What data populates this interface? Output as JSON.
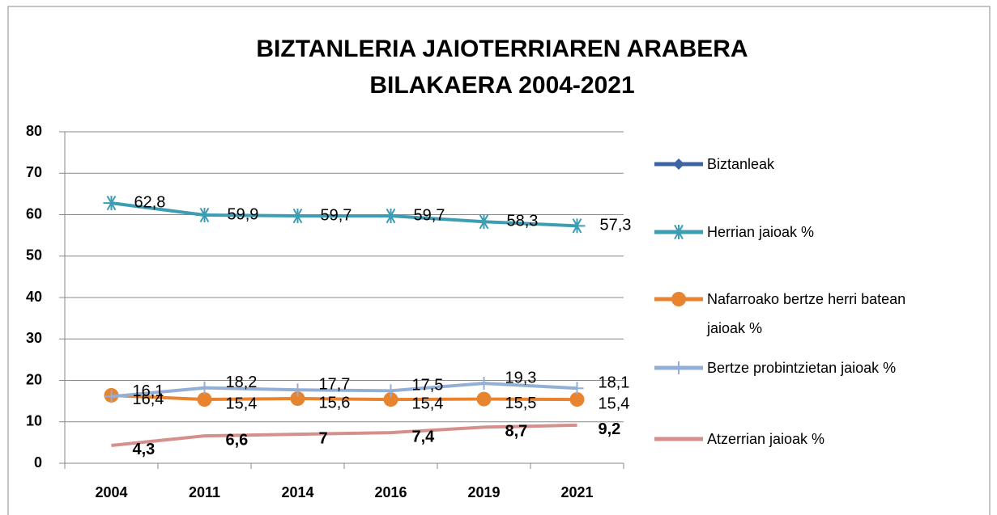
{
  "chart_data": {
    "type": "line",
    "title": [
      "BIZTANLERIA JAIOTERRIAREN ARABERA",
      "BILAKAERA 2004-2021"
    ],
    "categories": [
      "2004",
      "2011",
      "2014",
      "2016",
      "2019",
      "2021"
    ],
    "ylim": [
      0,
      80
    ],
    "yticks": [
      0,
      10,
      20,
      30,
      40,
      50,
      60,
      70,
      80
    ],
    "grid": true,
    "legend": "right",
    "series": [
      {
        "name": "Biztanleak",
        "color": "#3c64a5",
        "marker": "diamond",
        "values": [
          null,
          null,
          null,
          null,
          null,
          null
        ]
      },
      {
        "name": "Herrian jaioak %",
        "color": "#3d9db3",
        "marker": "asterisk",
        "values": [
          62.8,
          59.9,
          59.7,
          59.7,
          58.3,
          57.3
        ],
        "value_labels": [
          "62,8",
          "59,9",
          "59,7",
          "59,7",
          "58,3",
          "57,3"
        ]
      },
      {
        "name": "Nafarroako bertze herri batean jaioak %",
        "color": "#e8832f",
        "marker": "circle",
        "values": [
          16.4,
          15.4,
          15.6,
          15.4,
          15.5,
          15.4
        ],
        "value_labels": [
          "16,4",
          "15,4",
          "15,6",
          "15,4",
          "15,5",
          "15,4"
        ]
      },
      {
        "name": "Bertze probintzietan jaioak %",
        "color": "#93afd6",
        "marker": "plus",
        "values": [
          16.1,
          18.2,
          17.7,
          17.5,
          19.3,
          18.1
        ],
        "value_labels": [
          "16,1",
          "18,2",
          "17,7",
          "17,5",
          "19,3",
          "18,1"
        ]
      },
      {
        "name": "Atzerrian jaioak %",
        "color": "#d58f8d",
        "marker": "none",
        "values": [
          4.3,
          6.6,
          7,
          7.4,
          8.7,
          9.2
        ],
        "value_labels": [
          "4,3",
          "6,6",
          "7",
          "7,4",
          "8,7",
          "9,2"
        ]
      }
    ]
  }
}
